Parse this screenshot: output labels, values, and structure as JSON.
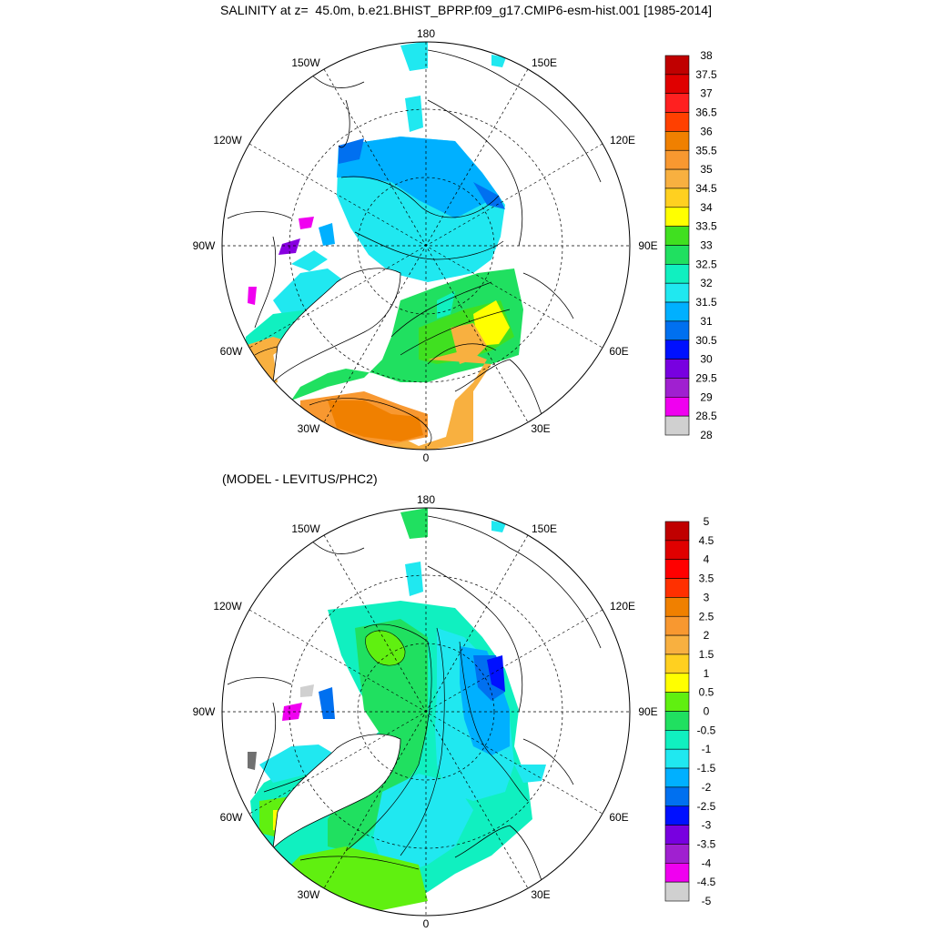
{
  "title": "SALINITY at z=  45.0m, b.e21.BHIST_BPRP.f09_g17.CMIP6-esm-hist.001 [1985-2014]",
  "subtitle": "(MODEL - LEVITUS/PHC2)",
  "longitude_labels": {
    "top": "180",
    "upper_left": "150W",
    "upper_right": "150E",
    "left_upper": "120W",
    "right_upper": "120E",
    "left": "90W",
    "right": "90E",
    "left_lower": "60W",
    "right_lower": "60E",
    "lower_left": "30W",
    "lower_right": "30E",
    "bottom": "0"
  },
  "maps": [
    {
      "name": "salinity",
      "colorbar": {
        "labels": [
          "38",
          "37.5",
          "37",
          "36.5",
          "36",
          "35.5",
          "35",
          "34.5",
          "34",
          "33.5",
          "33",
          "32.5",
          "32",
          "31.5",
          "31",
          "30.5",
          "30",
          "29.5",
          "29",
          "28.5",
          "28"
        ],
        "colors": [
          "#c00000",
          "#e00000",
          "#ff2020",
          "#ff4000",
          "#f08000",
          "#f89830",
          "#f8b040",
          "#ffd020",
          "#ffff00",
          "#40e020",
          "#20e060",
          "#10f0c0",
          "#20e8f0",
          "#00b0ff",
          "#0070f0",
          "#0010ff",
          "#7800e0",
          "#a020d0",
          "#f000f0",
          "#d0d0d0"
        ]
      }
    },
    {
      "name": "difference",
      "colorbar": {
        "labels": [
          "5",
          "4.5",
          "4",
          "3.5",
          "3",
          "2.5",
          "2",
          "1.5",
          "1",
          "0.5",
          "0",
          "-0.5",
          "-1",
          "-1.5",
          "-2",
          "-2.5",
          "-3",
          "-3.5",
          "-4",
          "-4.5",
          "-5"
        ],
        "colors": [
          "#c00000",
          "#e00000",
          "#ff0000",
          "#ff3000",
          "#f08000",
          "#f89830",
          "#f8b040",
          "#ffd020",
          "#ffff00",
          "#60f010",
          "#20e060",
          "#10f0c0",
          "#20e8f0",
          "#00b0ff",
          "#0070f0",
          "#0010ff",
          "#7800e0",
          "#a020d0",
          "#f000f0",
          "#d0d0d0"
        ]
      }
    }
  ]
}
